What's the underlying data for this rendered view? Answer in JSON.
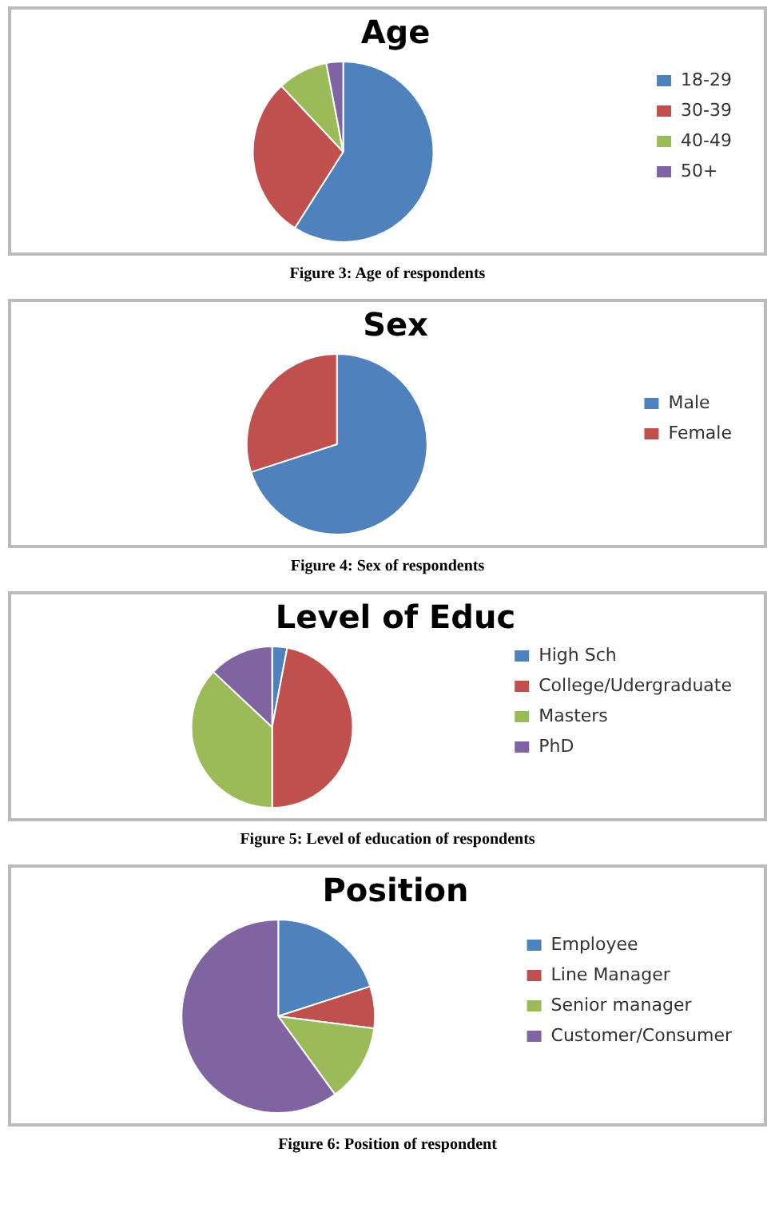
{
  "chart_data": [
    {
      "type": "pie",
      "title": "Age",
      "categories": [
        "18-29",
        "30-39",
        "40-49",
        "50+"
      ],
      "values": [
        59,
        29,
        9,
        3
      ],
      "colors": [
        "#4f81bd",
        "#c0504d",
        "#9bbb59",
        "#8064a2"
      ],
      "legend": "right",
      "annotations": [
        "Figure 3: Age of respondents"
      ]
    },
    {
      "type": "pie",
      "title": "Sex",
      "categories": [
        "Male",
        "Female"
      ],
      "values": [
        70,
        30
      ],
      "colors": [
        "#4f81bd",
        "#c0504d"
      ],
      "legend": "right",
      "annotations": [
        "Figure 4: Sex of respondents"
      ]
    },
    {
      "type": "pie",
      "title": "Level of Educ",
      "categories": [
        "High Sch",
        "College/Udergraduate",
        "Masters",
        "PhD"
      ],
      "values": [
        3,
        47,
        37,
        13
      ],
      "colors": [
        "#4f81bd",
        "#c0504d",
        "#9bbb59",
        "#8064a2"
      ],
      "legend": "right",
      "annotations": [
        "Figure 5: Level of education of respondents"
      ]
    },
    {
      "type": "pie",
      "title": "Position",
      "categories": [
        "Employee",
        "Line Manager",
        "Senior manager",
        "Customer/Consumer"
      ],
      "values": [
        20,
        7,
        13,
        60
      ],
      "colors": [
        "#4f81bd",
        "#c0504d",
        "#9bbb59",
        "#8064a2"
      ],
      "legend": "right",
      "annotations": [
        "Figure 6: Position of respondent"
      ]
    }
  ]
}
